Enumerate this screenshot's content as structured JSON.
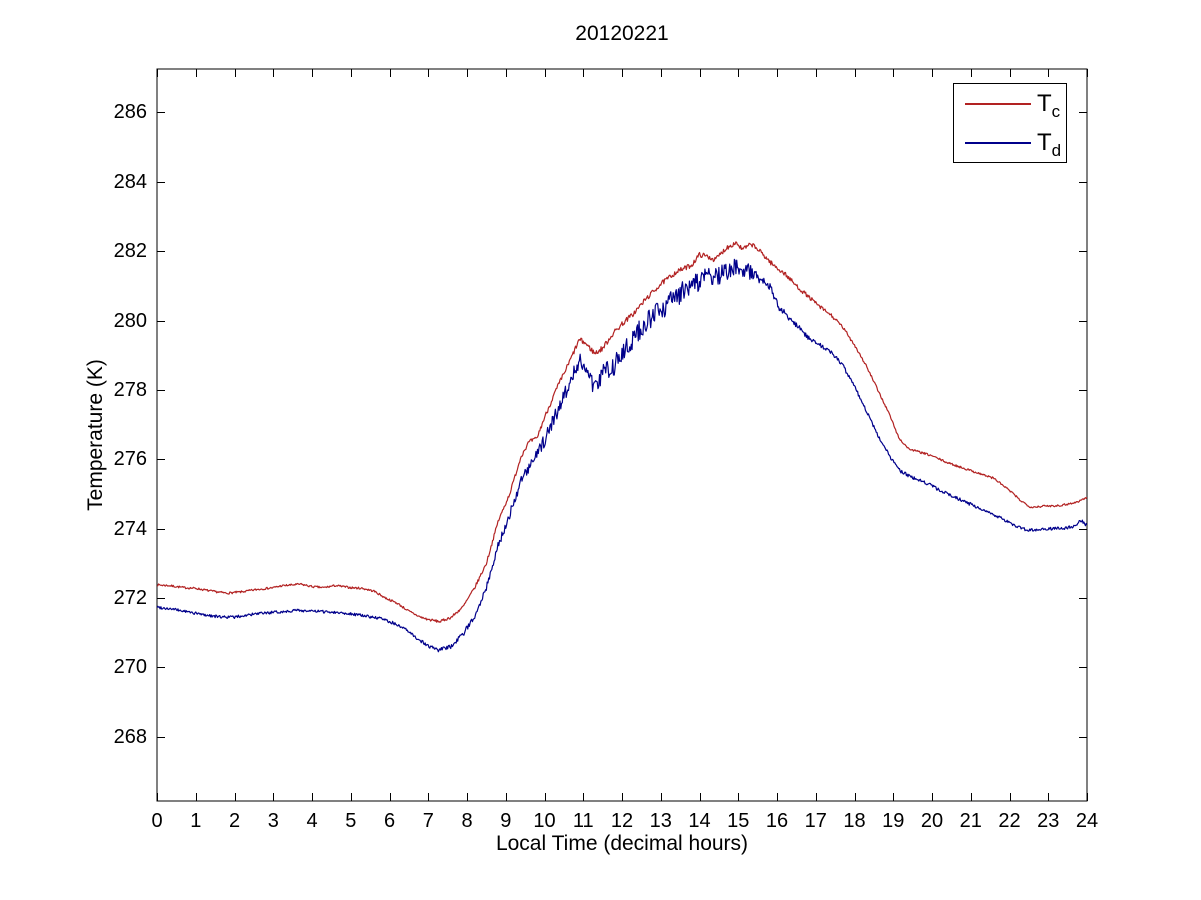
{
  "figure": {
    "background": "#ffffff",
    "axis_color": "#000000"
  },
  "chart_data": {
    "type": "line",
    "title": "20120221",
    "xlabel": "Local Time (decimal hours)",
    "ylabel": "Temperature (K)",
    "xlim": [
      0,
      24
    ],
    "ylim": [
      266.15,
      287.25
    ],
    "xticks": [
      0,
      1,
      2,
      3,
      4,
      5,
      6,
      7,
      8,
      9,
      10,
      11,
      12,
      13,
      14,
      15,
      16,
      17,
      18,
      19,
      20,
      21,
      22,
      23,
      24
    ],
    "yticks": [
      268,
      270,
      272,
      274,
      276,
      278,
      280,
      282,
      284,
      286
    ],
    "grid": false,
    "legend": {
      "position": "top-right",
      "entries": [
        {
          "main": "T",
          "sub": "c",
          "color": "#b22222"
        },
        {
          "main": "T",
          "sub": "d",
          "color": "#00008b"
        }
      ]
    },
    "series": [
      {
        "name": "T_c",
        "color": "#b22222",
        "noise_seed": 7,
        "points": [
          [
            0,
            272.38
          ],
          [
            0.3,
            272.36
          ],
          [
            0.7,
            272.3
          ],
          [
            1.0,
            272.28
          ],
          [
            1.4,
            272.2
          ],
          [
            1.8,
            272.14
          ],
          [
            2.2,
            272.18
          ],
          [
            2.6,
            272.25
          ],
          [
            3.0,
            272.3
          ],
          [
            3.2,
            272.35
          ],
          [
            3.7,
            272.4
          ],
          [
            4.0,
            272.33
          ],
          [
            4.3,
            272.3
          ],
          [
            4.6,
            272.36
          ],
          [
            5.0,
            272.3
          ],
          [
            5.3,
            272.28
          ],
          [
            5.6,
            272.2
          ],
          [
            5.9,
            272.0
          ],
          [
            6.2,
            271.85
          ],
          [
            6.5,
            271.62
          ],
          [
            6.8,
            271.45
          ],
          [
            7.0,
            271.38
          ],
          [
            7.3,
            271.32
          ],
          [
            7.6,
            271.45
          ],
          [
            7.9,
            271.75
          ],
          [
            8.2,
            272.3
          ],
          [
            8.5,
            273.0
          ],
          [
            8.8,
            274.2
          ],
          [
            9.1,
            275.0
          ],
          [
            9.4,
            276.1
          ],
          [
            9.6,
            276.5
          ],
          [
            9.8,
            276.6
          ],
          [
            10.0,
            277.2
          ],
          [
            10.3,
            278.0
          ],
          [
            10.6,
            278.7
          ],
          [
            10.9,
            279.45
          ],
          [
            11.05,
            279.35
          ],
          [
            11.3,
            279.05
          ],
          [
            11.5,
            279.2
          ],
          [
            11.75,
            279.6
          ],
          [
            12.0,
            279.9
          ],
          [
            12.3,
            280.2
          ],
          [
            12.6,
            280.6
          ],
          [
            13.0,
            281.05
          ],
          [
            13.4,
            281.4
          ],
          [
            13.8,
            281.6
          ],
          [
            14.0,
            281.9
          ],
          [
            14.2,
            281.85
          ],
          [
            14.4,
            281.75
          ],
          [
            14.7,
            282.1
          ],
          [
            14.95,
            282.25
          ],
          [
            15.1,
            282.05
          ],
          [
            15.35,
            282.2
          ],
          [
            15.6,
            281.95
          ],
          [
            15.9,
            281.6
          ],
          [
            16.2,
            281.35
          ],
          [
            16.5,
            281.0
          ],
          [
            16.8,
            280.7
          ],
          [
            17.1,
            280.4
          ],
          [
            17.4,
            280.15
          ],
          [
            17.7,
            279.8
          ],
          [
            18.0,
            279.3
          ],
          [
            18.3,
            278.7
          ],
          [
            18.6,
            278.0
          ],
          [
            18.9,
            277.3
          ],
          [
            19.15,
            276.6
          ],
          [
            19.4,
            276.3
          ],
          [
            19.7,
            276.2
          ],
          [
            20.0,
            276.1
          ],
          [
            20.4,
            275.9
          ],
          [
            20.8,
            275.75
          ],
          [
            21.2,
            275.6
          ],
          [
            21.6,
            275.45
          ],
          [
            22.0,
            275.1
          ],
          [
            22.3,
            274.8
          ],
          [
            22.55,
            274.62
          ],
          [
            22.9,
            274.65
          ],
          [
            23.3,
            274.67
          ],
          [
            23.7,
            274.75
          ],
          [
            24.0,
            274.9
          ]
        ],
        "noise_amp": [
          [
            0,
            0.03
          ],
          [
            6,
            0.03
          ],
          [
            7.5,
            0.04
          ],
          [
            9,
            0.05
          ],
          [
            10.5,
            0.07
          ],
          [
            11.5,
            0.08
          ],
          [
            13,
            0.07
          ],
          [
            16,
            0.07
          ],
          [
            17.5,
            0.05
          ],
          [
            19,
            0.03
          ],
          [
            24,
            0.03
          ]
        ]
      },
      {
        "name": "T_d",
        "color": "#00008b",
        "noise_seed": 99,
        "points": [
          [
            0,
            271.74
          ],
          [
            0.4,
            271.68
          ],
          [
            0.8,
            271.6
          ],
          [
            1.2,
            271.52
          ],
          [
            1.6,
            271.46
          ],
          [
            2.0,
            271.45
          ],
          [
            2.4,
            271.52
          ],
          [
            2.8,
            271.57
          ],
          [
            3.2,
            271.6
          ],
          [
            3.6,
            271.65
          ],
          [
            4.0,
            271.62
          ],
          [
            4.5,
            271.6
          ],
          [
            5.0,
            271.55
          ],
          [
            5.4,
            271.48
          ],
          [
            5.8,
            271.4
          ],
          [
            6.1,
            271.28
          ],
          [
            6.4,
            271.1
          ],
          [
            6.7,
            270.85
          ],
          [
            7.0,
            270.62
          ],
          [
            7.25,
            270.5
          ],
          [
            7.55,
            270.58
          ],
          [
            7.9,
            270.95
          ],
          [
            8.2,
            271.5
          ],
          [
            8.5,
            272.3
          ],
          [
            8.8,
            273.5
          ],
          [
            9.1,
            274.4
          ],
          [
            9.4,
            275.4
          ],
          [
            9.7,
            275.9
          ],
          [
            10.0,
            276.55
          ],
          [
            10.3,
            277.3
          ],
          [
            10.6,
            278.1
          ],
          [
            10.9,
            278.9
          ],
          [
            11.1,
            278.4
          ],
          [
            11.3,
            278.15
          ],
          [
            11.5,
            278.5
          ],
          [
            11.75,
            278.6
          ],
          [
            12.0,
            279.15
          ],
          [
            12.3,
            279.5
          ],
          [
            12.6,
            279.9
          ],
          [
            13.0,
            280.3
          ],
          [
            13.4,
            280.7
          ],
          [
            13.8,
            281.0
          ],
          [
            14.1,
            281.2
          ],
          [
            14.5,
            281.3
          ],
          [
            14.9,
            281.55
          ],
          [
            15.2,
            281.45
          ],
          [
            15.5,
            281.3
          ],
          [
            15.8,
            281.0
          ],
          [
            16.1,
            280.3
          ],
          [
            16.4,
            280.0
          ],
          [
            16.8,
            279.5
          ],
          [
            17.1,
            279.3
          ],
          [
            17.4,
            279.1
          ],
          [
            17.7,
            278.7
          ],
          [
            18.0,
            278.1
          ],
          [
            18.3,
            277.4
          ],
          [
            18.6,
            276.7
          ],
          [
            18.9,
            276.1
          ],
          [
            19.2,
            275.65
          ],
          [
            19.45,
            275.5
          ],
          [
            19.8,
            275.35
          ],
          [
            20.2,
            275.1
          ],
          [
            20.6,
            274.9
          ],
          [
            21.0,
            274.7
          ],
          [
            21.4,
            274.5
          ],
          [
            21.8,
            274.3
          ],
          [
            22.2,
            274.05
          ],
          [
            22.5,
            273.95
          ],
          [
            22.9,
            274.0
          ],
          [
            23.3,
            274.0
          ],
          [
            23.6,
            274.05
          ],
          [
            23.85,
            274.22
          ],
          [
            24.0,
            274.1
          ]
        ],
        "noise_amp": [
          [
            0,
            0.04
          ],
          [
            5,
            0.04
          ],
          [
            7,
            0.05
          ],
          [
            8.5,
            0.09
          ],
          [
            9.5,
            0.15
          ],
          [
            10.5,
            0.22
          ],
          [
            11.2,
            0.28
          ],
          [
            12,
            0.3
          ],
          [
            13.5,
            0.3
          ],
          [
            14.5,
            0.27
          ],
          [
            15.3,
            0.22
          ],
          [
            15.9,
            0.14
          ],
          [
            16.4,
            0.08
          ],
          [
            17.2,
            0.06
          ],
          [
            18.5,
            0.05
          ],
          [
            20,
            0.05
          ],
          [
            22,
            0.04
          ],
          [
            23.5,
            0.05
          ],
          [
            24,
            0.05
          ]
        ]
      }
    ]
  }
}
